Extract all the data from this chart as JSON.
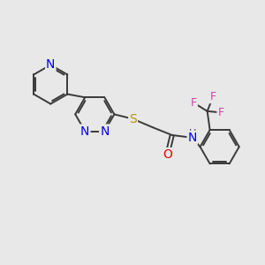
{
  "background_color": "#e8e8e8",
  "bond_color": "#3a3a3a",
  "n_color": "#0000ee",
  "s_color": "#b8960a",
  "o_color": "#ee0000",
  "f_color": "#cc44aa",
  "line_width": 1.4,
  "font_size": 9,
  "figsize": [
    3.0,
    3.0
  ],
  "dpi": 100,
  "xlim": [
    0,
    10
  ],
  "ylim": [
    1,
    9
  ]
}
